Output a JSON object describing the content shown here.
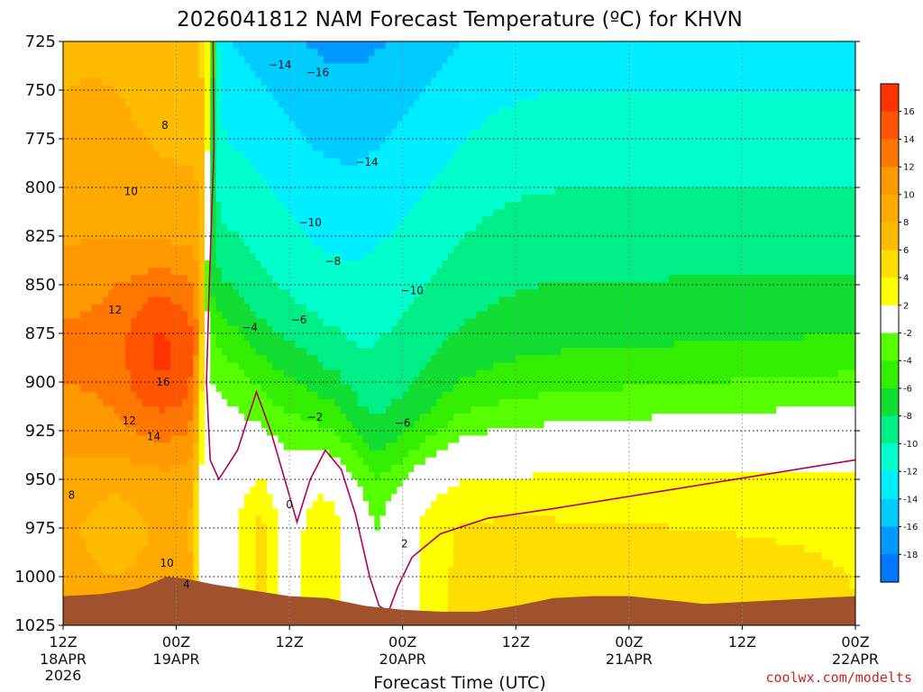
{
  "header": {
    "title": "2026041812 NAM Forecast Temperature (ºC) for KHVN"
  },
  "footer": {
    "credit": "coolwx.com/modelts"
  },
  "chart_data": {
    "type": "heatmap",
    "title": "2026041812 NAM Forecast Temperature (ºC) for KHVN",
    "xlabel": "Forecast Time (UTC)",
    "ylabel": "",
    "y_scale": "pressure (hPa), inverted",
    "ylim": [
      1025,
      725
    ],
    "y_ticks": [
      "725",
      "750",
      "775",
      "800",
      "825",
      "850",
      "875",
      "900",
      "925",
      "950",
      "975",
      "1000",
      "1025"
    ],
    "x_ticks": [
      {
        "hour": "12Z",
        "date": "18APR",
        "year": "2026"
      },
      {
        "hour": "00Z",
        "date": "19APR",
        "year": ""
      },
      {
        "hour": "12Z",
        "date": "",
        "year": ""
      },
      {
        "hour": "00Z",
        "date": "20APR",
        "year": ""
      },
      {
        "hour": "12Z",
        "date": "",
        "year": ""
      },
      {
        "hour": "00Z",
        "date": "21APR",
        "year": ""
      },
      {
        "hour": "12Z",
        "date": "",
        "year": ""
      },
      {
        "hour": "00Z",
        "date": "22APR",
        "year": ""
      }
    ],
    "grid": true,
    "colorbar": {
      "placement": "right",
      "labels": [
        "16",
        "14",
        "12",
        "10",
        "8",
        "6",
        "4",
        "2",
        "-2",
        "-4",
        "-6",
        "-8",
        "-10",
        "-12",
        "-14",
        "-16",
        "-18"
      ],
      "colors": [
        "#ff3300",
        "#ff5500",
        "#ff7700",
        "#ff9900",
        "#ffaa00",
        "#ffbb00",
        "#ffdd00",
        "#ffff00",
        "#ffffff",
        "#55ff00",
        "#33ee00",
        "#11dd33",
        "#00ee88",
        "#00ffcc",
        "#00eeff",
        "#00ccff",
        "#0099ff",
        "#0077ff"
      ]
    },
    "terrain_color": "#a0522d",
    "contour_labels": [
      {
        "text": "−14",
        "hour": 23.0,
        "p": 737
      },
      {
        "text": "−16",
        "hour": 27.0,
        "p": 741
      },
      {
        "text": "8",
        "hour": 10.8,
        "p": 768
      },
      {
        "text": "−14",
        "hour": 32.2,
        "p": 787
      },
      {
        "text": "10",
        "hour": 7.2,
        "p": 802
      },
      {
        "text": "−10",
        "hour": 26.2,
        "p": 818
      },
      {
        "text": "−8",
        "hour": 28.6,
        "p": 838
      },
      {
        "text": "−10",
        "hour": 37.0,
        "p": 853
      },
      {
        "text": "12",
        "hour": 5.5,
        "p": 863
      },
      {
        "text": "−6",
        "hour": 25.0,
        "p": 868
      },
      {
        "text": "−4",
        "hour": 19.8,
        "p": 872
      },
      {
        "text": "16",
        "hour": 10.6,
        "p": 900
      },
      {
        "text": "−2",
        "hour": 26.7,
        "p": 918
      },
      {
        "text": "12",
        "hour": 7.0,
        "p": 920
      },
      {
        "text": "−6",
        "hour": 36.0,
        "p": 921
      },
      {
        "text": "14",
        "hour": 9.6,
        "p": 928
      },
      {
        "text": "8",
        "hour": 0.9,
        "p": 958
      },
      {
        "text": "0",
        "hour": 24.0,
        "p": 963
      },
      {
        "text": "2",
        "hour": 36.2,
        "p": 983
      },
      {
        "text": "10",
        "hour": 11.0,
        "p": 993
      },
      {
        "text": "4",
        "hour": 13.1,
        "p": 1004
      }
    ]
  }
}
